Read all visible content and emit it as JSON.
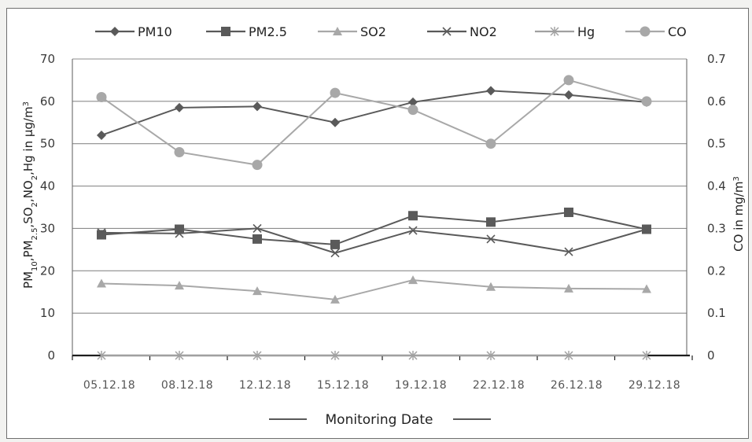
{
  "chart_data": {
    "type": "line",
    "categories": [
      "05.12.18",
      "08.12.18",
      "12.12.18",
      "15.12.18",
      "19.12.18",
      "22.12.18",
      "26.12.18",
      "29.12.18"
    ],
    "xlabel": "Monitoring Date",
    "ylabel_left": {
      "main": "PM",
      "sub1": "10",
      "sep1": ",PM",
      "sub2": "2.5",
      "sep2": ",SO",
      "sub3": "2",
      "sep3": ",NO",
      "sub4": "2",
      "sep4": ",Hg in μg/m",
      "sup": "3"
    },
    "ylabel_right": {
      "main": "CO in mg/m",
      "sup": "3"
    },
    "ylim_left": [
      0,
      70
    ],
    "ylim_right": [
      0,
      0.7
    ],
    "yticks_left": [
      "0",
      "10",
      "20",
      "30",
      "40",
      "50",
      "60",
      "70"
    ],
    "yticks_right": [
      "0",
      "0.1",
      "0.2",
      "0.3",
      "0.4",
      "0.5",
      "0.6",
      "0.7"
    ],
    "grid": true,
    "legend_position": "top",
    "series": [
      {
        "name": "PM10",
        "axis": "left",
        "marker": "diamond",
        "color": "#5a5a5a",
        "values": [
          52,
          58.5,
          58.8,
          55,
          59.8,
          62.5,
          61.5,
          59.8
        ]
      },
      {
        "name": "PM2.5",
        "axis": "left",
        "marker": "square",
        "color": "#5a5a5a",
        "values": [
          28.5,
          29.8,
          27.5,
          26.2,
          33,
          31.5,
          33.8,
          29.8
        ]
      },
      {
        "name": "SO2",
        "axis": "left",
        "marker": "triangle",
        "color": "#a8a8a8",
        "values": [
          17,
          16.5,
          15.2,
          13.2,
          17.8,
          16.2,
          15.8,
          15.7
        ]
      },
      {
        "name": "NO2",
        "axis": "left",
        "marker": "x",
        "color": "#5a5a5a",
        "values": [
          29,
          28.8,
          30,
          24.2,
          29.5,
          27.5,
          24.5,
          29.8
        ]
      },
      {
        "name": "Hg",
        "axis": "left",
        "marker": "asterisk",
        "color": "#a0a0a0",
        "values": [
          0,
          0,
          0,
          0,
          0,
          0,
          0,
          0
        ]
      },
      {
        "name": "CO",
        "axis": "right",
        "marker": "circle",
        "color": "#a8a8a8",
        "values": [
          0.61,
          0.48,
          0.45,
          0.62,
          0.58,
          0.5,
          0.65,
          0.6
        ]
      }
    ]
  }
}
